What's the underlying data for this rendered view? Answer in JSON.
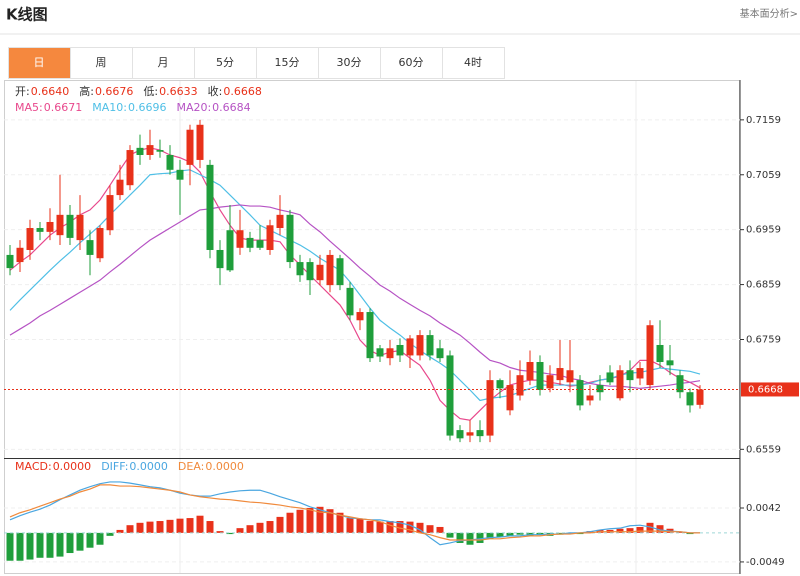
{
  "header": {
    "title": "K线图",
    "link": "基本面分析>"
  },
  "tabs": {
    "items": [
      "日",
      "周",
      "月",
      "5分",
      "15分",
      "30分",
      "60分",
      "4时"
    ],
    "active": 0
  },
  "chart_data": [
    {
      "type": "candlestick",
      "up_color": "#e8311a",
      "down_color": "#1f9e3b",
      "quote": [
        {
          "label": "开:",
          "value": 0.664,
          "value_label": "0.6640"
        },
        {
          "label": "高:",
          "value": 0.6676,
          "value_label": "0.6676"
        },
        {
          "label": "低:",
          "value": 0.6633,
          "value_label": "0.6633"
        },
        {
          "label": "收:",
          "value": 0.6668,
          "value_label": "0.6668"
        }
      ],
      "open": [
        0.6913,
        0.69,
        0.6922,
        0.6962,
        0.6955,
        0.6949,
        0.6986,
        0.694,
        0.694,
        0.6907,
        0.6958,
        0.7022,
        0.704,
        0.7108,
        0.7095,
        0.7104,
        0.7095,
        0.7068,
        0.7077,
        0.7086,
        0.7077,
        0.6922,
        0.6958,
        0.6926,
        0.6944,
        0.694,
        0.6922,
        0.6962,
        0.6986,
        0.69,
        0.69,
        0.6867,
        0.6858,
        0.6907,
        0.6853,
        0.6794,
        0.6809,
        0.6743,
        0.6725,
        0.6749,
        0.673,
        0.673,
        0.6767,
        0.6743,
        0.673,
        0.6594,
        0.6584,
        0.6594,
        0.6584,
        0.6685,
        0.663,
        0.6657,
        0.6685,
        0.6718,
        0.667,
        0.6685,
        0.6681,
        0.6685,
        0.6648,
        0.6676,
        0.6699,
        0.6652,
        0.6703,
        0.6688,
        0.6676,
        0.6749,
        0.6721,
        0.6694,
        0.6663,
        0.664
      ],
      "high": [
        0.6931,
        0.694,
        0.6977,
        0.6973,
        0.6998,
        0.7059,
        0.7004,
        0.7022,
        0.6958,
        0.6967,
        0.704,
        0.7077,
        0.7113,
        0.7132,
        0.7141,
        0.7123,
        0.7113,
        0.7086,
        0.715,
        0.7159,
        0.7086,
        0.694,
        0.7004,
        0.6995,
        0.6955,
        0.6967,
        0.6977,
        0.7022,
        0.6995,
        0.6913,
        0.6907,
        0.6913,
        0.6922,
        0.6913,
        0.6864,
        0.6816,
        0.6816,
        0.6749,
        0.6758,
        0.6761,
        0.6767,
        0.6776,
        0.6776,
        0.6758,
        0.6739,
        0.6603,
        0.6612,
        0.6612,
        0.6703,
        0.6688,
        0.6703,
        0.6721,
        0.6739,
        0.673,
        0.6712,
        0.6758,
        0.6758,
        0.6694,
        0.6676,
        0.6694,
        0.6712,
        0.6712,
        0.6721,
        0.6718,
        0.6794,
        0.6794,
        0.6749,
        0.6703,
        0.667,
        0.6676
      ],
      "low": [
        0.6876,
        0.6882,
        0.6904,
        0.694,
        0.694,
        0.6931,
        0.6931,
        0.6922,
        0.6876,
        0.69,
        0.6949,
        0.7013,
        0.7031,
        0.7077,
        0.7086,
        0.709,
        0.7059,
        0.6986,
        0.704,
        0.7071,
        0.6907,
        0.6858,
        0.6882,
        0.6913,
        0.6918,
        0.6922,
        0.6913,
        0.6949,
        0.6889,
        0.6864,
        0.684,
        0.6858,
        0.6845,
        0.6849,
        0.6794,
        0.6776,
        0.6718,
        0.6718,
        0.6712,
        0.6718,
        0.6707,
        0.6721,
        0.6721,
        0.6718,
        0.6575,
        0.6572,
        0.6572,
        0.6572,
        0.6572,
        0.6652,
        0.6621,
        0.6648,
        0.6676,
        0.6657,
        0.6663,
        0.6676,
        0.6663,
        0.663,
        0.6639,
        0.6648,
        0.6676,
        0.6648,
        0.6663,
        0.6676,
        0.6667,
        0.6707,
        0.6694,
        0.6652,
        0.6626,
        0.6633
      ],
      "close": [
        0.6889,
        0.6926,
        0.6962,
        0.6955,
        0.6973,
        0.6986,
        0.6944,
        0.6986,
        0.6913,
        0.6962,
        0.7022,
        0.705,
        0.7104,
        0.7095,
        0.7113,
        0.7101,
        0.7068,
        0.705,
        0.7141,
        0.715,
        0.6922,
        0.6889,
        0.6885,
        0.6958,
        0.6926,
        0.6926,
        0.6967,
        0.6986,
        0.69,
        0.6876,
        0.6867,
        0.6895,
        0.6913,
        0.6858,
        0.6803,
        0.6809,
        0.6725,
        0.6728,
        0.6743,
        0.673,
        0.6761,
        0.6767,
        0.673,
        0.6725,
        0.6584,
        0.6579,
        0.659,
        0.6583,
        0.6685,
        0.667,
        0.6676,
        0.6694,
        0.6718,
        0.6667,
        0.6694,
        0.6707,
        0.6703,
        0.6639,
        0.6657,
        0.6663,
        0.6681,
        0.6703,
        0.6685,
        0.6707,
        0.6785,
        0.6718,
        0.6712,
        0.6663,
        0.6639,
        0.6668
      ],
      "series": [
        {
          "name": "MA5:",
          "value_label": "0.6671",
          "color": "#e8488c",
          "values": [
            0.6885,
            0.69,
            0.6913,
            0.6931,
            0.6949,
            0.6962,
            0.6973,
            0.6986,
            0.6995,
            0.7013,
            0.704,
            0.7068,
            0.7095,
            0.7104,
            0.7108,
            0.7104,
            0.7095,
            0.709,
            0.7082,
            0.7064,
            0.7028,
            0.6995,
            0.6967,
            0.6944,
            0.694,
            0.694,
            0.694,
            0.6937,
            0.6913,
            0.6895,
            0.6876,
            0.6858,
            0.684,
            0.6822,
            0.6794,
            0.6758,
            0.6739,
            0.673,
            0.6736,
            0.6739,
            0.6725,
            0.6712,
            0.6685,
            0.6648,
            0.663,
            0.6615,
            0.6612,
            0.663,
            0.6648,
            0.6663,
            0.6676,
            0.6681,
            0.6685,
            0.6685,
            0.6681,
            0.6678,
            0.6674,
            0.6676,
            0.6681,
            0.6685,
            0.6688,
            0.6692,
            0.6703,
            0.6721,
            0.6721,
            0.6712,
            0.6699,
            0.6688,
            0.6681,
            0.6671
          ]
        },
        {
          "name": "MA10:",
          "value_label": "0.6696",
          "color": "#4fbfe6",
          "values": [
            0.6812,
            0.6831,
            0.6849,
            0.6867,
            0.6885,
            0.6902,
            0.6918,
            0.6935,
            0.6951,
            0.6967,
            0.6986,
            0.7004,
            0.7022,
            0.704,
            0.7059,
            0.7061,
            0.7062,
            0.7066,
            0.7068,
            0.7059,
            0.705,
            0.704,
            0.7022,
            0.7004,
            0.6986,
            0.6967,
            0.6958,
            0.6949,
            0.694,
            0.6931,
            0.692,
            0.6907,
            0.6896,
            0.6885,
            0.6864,
            0.684,
            0.6816,
            0.6794,
            0.678,
            0.6767,
            0.6752,
            0.6739,
            0.6727,
            0.6716,
            0.6703,
            0.6685,
            0.6667,
            0.6648,
            0.6652,
            0.6654,
            0.6657,
            0.6663,
            0.667,
            0.6676,
            0.6676,
            0.6676,
            0.6676,
            0.6676,
            0.6679,
            0.6685,
            0.6688,
            0.6694,
            0.6698,
            0.6699,
            0.6703,
            0.6707,
            0.6705,
            0.6703,
            0.6701,
            0.6696
          ]
        },
        {
          "name": "MA20:",
          "value_label": "0.6684",
          "color": "#b653c4",
          "values": [
            0.6767,
            0.6778,
            0.6789,
            0.6802,
            0.6812,
            0.6823,
            0.6834,
            0.6845,
            0.6856,
            0.6867,
            0.6882,
            0.6896,
            0.6911,
            0.6926,
            0.694,
            0.6951,
            0.6962,
            0.6973,
            0.6984,
            0.6995,
            0.6997,
            0.7,
            0.7002,
            0.7004,
            0.7002,
            0.7002,
            0.7,
            0.6995,
            0.6991,
            0.6986,
            0.6969,
            0.6955,
            0.6938,
            0.6922,
            0.6906,
            0.6889,
            0.6874,
            0.6858,
            0.6847,
            0.6834,
            0.6823,
            0.6812,
            0.6802,
            0.6789,
            0.6778,
            0.6767,
            0.6752,
            0.6736,
            0.6721,
            0.6716,
            0.6708,
            0.6703,
            0.6701,
            0.6699,
            0.6696,
            0.6694,
            0.6688,
            0.6685,
            0.6679,
            0.6676,
            0.6674,
            0.6674,
            0.6672,
            0.667,
            0.6672,
            0.6674,
            0.6676,
            0.6679,
            0.6681,
            0.6684
          ]
        }
      ],
      "ylim": [
        0.6545,
        0.7217
      ],
      "yticks": [
        0.7159,
        0.7059,
        0.6959,
        0.6859,
        0.6759,
        0.6559
      ],
      "grid": true
    },
    {
      "type": "macd",
      "histogram": {
        "name": "MACD:",
        "value_label": "0.0000",
        "up_color": "#e8311a",
        "down_color": "#1f9e3b",
        "values": [
          -0.0047,
          -0.0047,
          -0.0045,
          -0.0042,
          -0.0042,
          -0.004,
          -0.0034,
          -0.003,
          -0.0025,
          -0.002,
          -0.0005,
          0.0005,
          0.0013,
          0.0017,
          0.0019,
          0.002,
          0.0022,
          0.0024,
          0.0025,
          0.0029,
          0.002,
          0.0003,
          -0.0002,
          0.0008,
          0.0013,
          0.0017,
          0.002,
          0.0027,
          0.0034,
          0.0039,
          0.0042,
          0.0044,
          0.004,
          0.0034,
          0.0025,
          0.0024,
          0.002,
          0.0019,
          0.002,
          0.002,
          0.0019,
          0.0017,
          0.0013,
          0.001,
          -0.0008,
          -0.0017,
          -0.002,
          -0.0017,
          -0.001,
          -0.0007,
          -0.0005,
          -0.0003,
          -0.0005,
          -0.0003,
          -0.0005,
          -0.0003,
          -0.0002,
          -0.0002,
          0.0003,
          0.0005,
          0.0005,
          0.0007,
          0.0008,
          0.001,
          0.0017,
          0.0013,
          0.0007,
          0.0002,
          -0.0002,
          0
        ]
      },
      "series": [
        {
          "name": "DIFF:",
          "value_label": "0.0000",
          "color": "#4aa6e0",
          "values": [
            0.0022,
            0.0029,
            0.0035,
            0.004,
            0.0047,
            0.0056,
            0.0064,
            0.0072,
            0.0078,
            0.0083,
            0.0086,
            0.0086,
            0.0084,
            0.0081,
            0.0078,
            0.0076,
            0.0072,
            0.0067,
            0.0064,
            0.0062,
            0.0062,
            0.0066,
            0.0069,
            0.0071,
            0.0072,
            0.0072,
            0.0067,
            0.0061,
            0.0056,
            0.0051,
            0.0044,
            0.0039,
            0.0034,
            0.003,
            0.0025,
            0.0024,
            0.0022,
            0.0022,
            0.0019,
            0.0017,
            0.0013,
            0.0005,
            -0.0008,
            -0.002,
            -0.0017,
            -0.0013,
            -0.0012,
            -0.001,
            -0.0008,
            -0.0007,
            -0.0005,
            -0.0005,
            -0.0003,
            -0.0003,
            -0.0002,
            -0.0002,
            0,
            0,
            0.0002,
            0.0005,
            0.0007,
            0.0008,
            0.0012,
            0.0013,
            0.001,
            0.0005,
            0.0003,
            0.0002,
            0,
            0
          ]
        },
        {
          "name": "DEA:",
          "value_label": "0.0000",
          "color": "#f08a3c",
          "values": [
            0.0027,
            0.0034,
            0.0039,
            0.0045,
            0.0051,
            0.0057,
            0.0062,
            0.0069,
            0.0074,
            0.0081,
            0.0081,
            0.0079,
            0.0079,
            0.0078,
            0.0076,
            0.0074,
            0.0072,
            0.0069,
            0.0064,
            0.0061,
            0.0059,
            0.0057,
            0.0056,
            0.0054,
            0.0052,
            0.0051,
            0.0049,
            0.0047,
            0.0044,
            0.0042,
            0.0039,
            0.0035,
            0.0034,
            0.003,
            0.0027,
            0.0024,
            0.0022,
            0.0019,
            0.0013,
            0.0008,
            0.0005,
            0,
            -0.0003,
            -0.0008,
            -0.0012,
            -0.0012,
            -0.0012,
            -0.0012,
            -0.001,
            -0.001,
            -0.0008,
            -0.0007,
            -0.0005,
            -0.0005,
            -0.0003,
            -0.0002,
            -0.0002,
            0,
            0,
            0.0002,
            0.0002,
            0.0002,
            0.0002,
            0.0003,
            0.0003,
            0.0003,
            0.0002,
            0.0002,
            0,
            0
          ]
        }
      ],
      "ylim": [
        -0.0066,
        0.0123
      ],
      "yticks": [
        0.0042,
        -0.0049
      ],
      "grid": true
    }
  ]
}
